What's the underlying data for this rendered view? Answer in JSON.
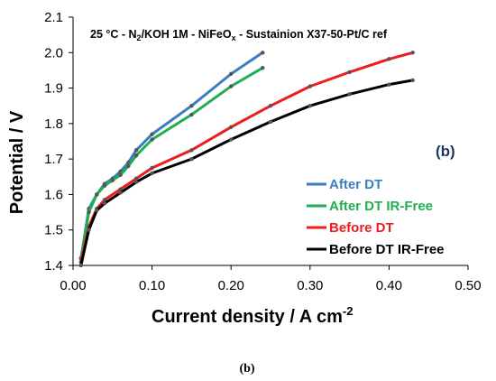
{
  "chart_data": {
    "type": "line",
    "title_parts": {
      "pre": "25 °C - N",
      "sub1": "2",
      "mid": "/KOH 1M - NiFeO",
      "sub2": "x",
      "post": " - Sustainion X37-50-Pt/C ref"
    },
    "panel_label": "(b)",
    "caption": "(b)",
    "xlabel": "Current density  / A cm",
    "xlabel_sup": "-2",
    "ylabel": "Potential / V",
    "xlim": [
      0,
      0.5
    ],
    "ylim": [
      1.4,
      2.1
    ],
    "xticks": [
      "0.00",
      "0.10",
      "0.20",
      "0.30",
      "0.40",
      "0.50"
    ],
    "yticks": [
      "1.4",
      "1.5",
      "1.6",
      "1.7",
      "1.8",
      "1.9",
      "2.0",
      "2.1"
    ],
    "grid": false,
    "legend_position": "right",
    "series": [
      {
        "name": "After DT",
        "color": "#3a7ec2",
        "points": [
          [
            0.01,
            1.42
          ],
          [
            0.02,
            1.56
          ],
          [
            0.03,
            1.6
          ],
          [
            0.04,
            1.63
          ],
          [
            0.05,
            1.645
          ],
          [
            0.06,
            1.665
          ],
          [
            0.07,
            1.69
          ],
          [
            0.08,
            1.725
          ],
          [
            0.1,
            1.77
          ],
          [
            0.15,
            1.85
          ],
          [
            0.2,
            1.94
          ],
          [
            0.24,
            2.0
          ]
        ]
      },
      {
        "name": "After DT IR-Free",
        "color": "#1eaf50",
        "points": [
          [
            0.01,
            1.42
          ],
          [
            0.02,
            1.55
          ],
          [
            0.03,
            1.6
          ],
          [
            0.04,
            1.625
          ],
          [
            0.05,
            1.64
          ],
          [
            0.06,
            1.655
          ],
          [
            0.07,
            1.68
          ],
          [
            0.08,
            1.71
          ],
          [
            0.1,
            1.755
          ],
          [
            0.15,
            1.825
          ],
          [
            0.2,
            1.905
          ],
          [
            0.24,
            1.957
          ]
        ]
      },
      {
        "name": "Before DT",
        "color": "#ee1c1c",
        "points": [
          [
            0.01,
            1.41
          ],
          [
            0.02,
            1.51
          ],
          [
            0.03,
            1.56
          ],
          [
            0.04,
            1.585
          ],
          [
            0.06,
            1.615
          ],
          [
            0.08,
            1.645
          ],
          [
            0.1,
            1.675
          ],
          [
            0.15,
            1.725
          ],
          [
            0.2,
            1.79
          ],
          [
            0.25,
            1.85
          ],
          [
            0.3,
            1.905
          ],
          [
            0.35,
            1.945
          ],
          [
            0.4,
            1.982
          ],
          [
            0.43,
            2.0
          ]
        ]
      },
      {
        "name": "Before DT IR-Free",
        "color": "#000000",
        "points": [
          [
            0.01,
            1.4
          ],
          [
            0.02,
            1.5
          ],
          [
            0.03,
            1.555
          ],
          [
            0.04,
            1.575
          ],
          [
            0.06,
            1.605
          ],
          [
            0.08,
            1.635
          ],
          [
            0.1,
            1.66
          ],
          [
            0.15,
            1.7
          ],
          [
            0.2,
            1.755
          ],
          [
            0.25,
            1.805
          ],
          [
            0.3,
            1.85
          ],
          [
            0.35,
            1.883
          ],
          [
            0.4,
            1.91
          ],
          [
            0.43,
            1.922
          ]
        ]
      }
    ]
  }
}
